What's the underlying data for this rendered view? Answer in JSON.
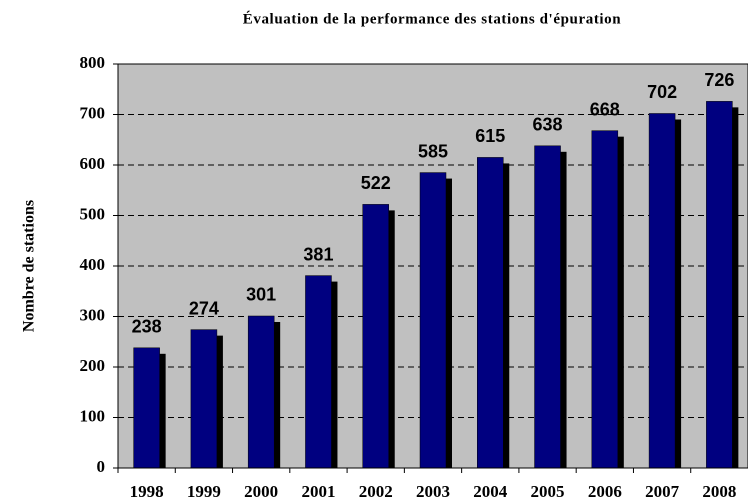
{
  "chart_data": {
    "type": "bar",
    "title": "Évaluation de la performance des stations d'épuration",
    "y_label": "Nombre de stations",
    "categories": [
      "1998",
      "1999",
      "2000",
      "2001",
      "2002",
      "2003",
      "2004",
      "2005",
      "2006",
      "2007",
      "2008"
    ],
    "values": [
      238,
      274,
      301,
      381,
      522,
      585,
      615,
      638,
      668,
      702,
      726
    ],
    "color": "#000080",
    "ylim": [
      0,
      800
    ],
    "yticks": [
      0,
      100,
      200,
      300,
      400,
      500,
      600,
      700,
      800
    ],
    "grid": true
  }
}
